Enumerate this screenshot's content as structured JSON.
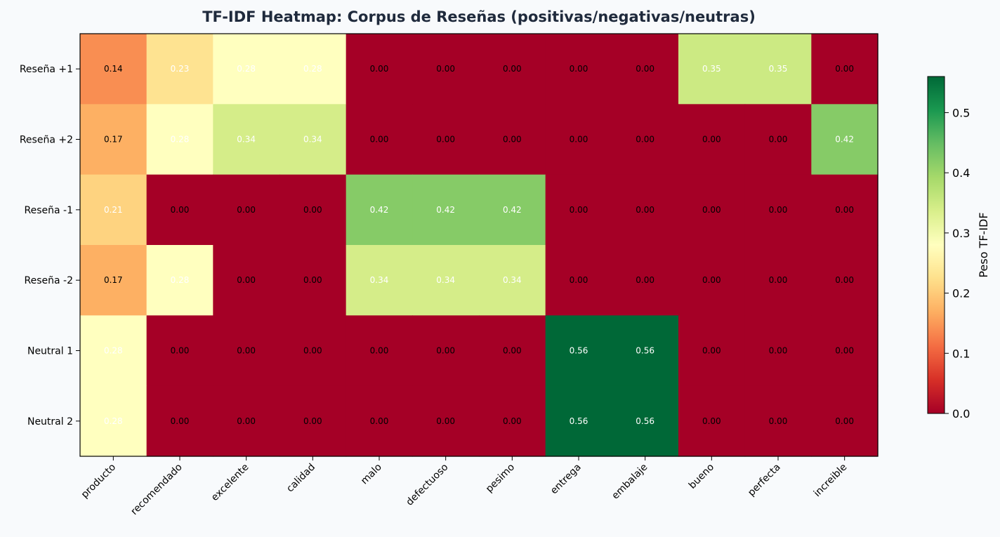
{
  "chart_data": {
    "type": "heatmap",
    "title": "TF-IDF Heatmap: Corpus de Reseñas (positivas/negativas/neutras)",
    "rows": [
      "Reseña +1",
      "Reseña +2",
      "Reseña -1",
      "Reseña -2",
      "Neutral 1",
      "Neutral 2"
    ],
    "columns": [
      "producto",
      "recomendado",
      "excelente",
      "calidad",
      "malo",
      "defectuoso",
      "pesimo",
      "entrega",
      "embalaje",
      "bueno",
      "perfecta",
      "increible"
    ],
    "values": [
      [
        0.14,
        0.23,
        0.28,
        0.28,
        0.0,
        0.0,
        0.0,
        0.0,
        0.0,
        0.35,
        0.35,
        0.0
      ],
      [
        0.17,
        0.28,
        0.34,
        0.34,
        0.0,
        0.0,
        0.0,
        0.0,
        0.0,
        0.0,
        0.0,
        0.42
      ],
      [
        0.21,
        0.0,
        0.0,
        0.0,
        0.42,
        0.42,
        0.42,
        0.0,
        0.0,
        0.0,
        0.0,
        0.0
      ],
      [
        0.17,
        0.28,
        0.0,
        0.0,
        0.34,
        0.34,
        0.34,
        0.0,
        0.0,
        0.0,
        0.0,
        0.0
      ],
      [
        0.28,
        0.0,
        0.0,
        0.0,
        0.0,
        0.0,
        0.0,
        0.56,
        0.56,
        0.0,
        0.0,
        0.0
      ],
      [
        0.28,
        0.0,
        0.0,
        0.0,
        0.0,
        0.0,
        0.0,
        0.56,
        0.56,
        0.0,
        0.0,
        0.0
      ]
    ],
    "value_format": "0.00",
    "colormap": "RdYlGn",
    "vmin": 0.0,
    "vmax": 0.56,
    "colorbar": {
      "label": "Peso TF-IDF",
      "ticks": [
        "0.0",
        "0.1",
        "0.2",
        "0.3",
        "0.4",
        "0.5"
      ]
    },
    "grid": false
  }
}
